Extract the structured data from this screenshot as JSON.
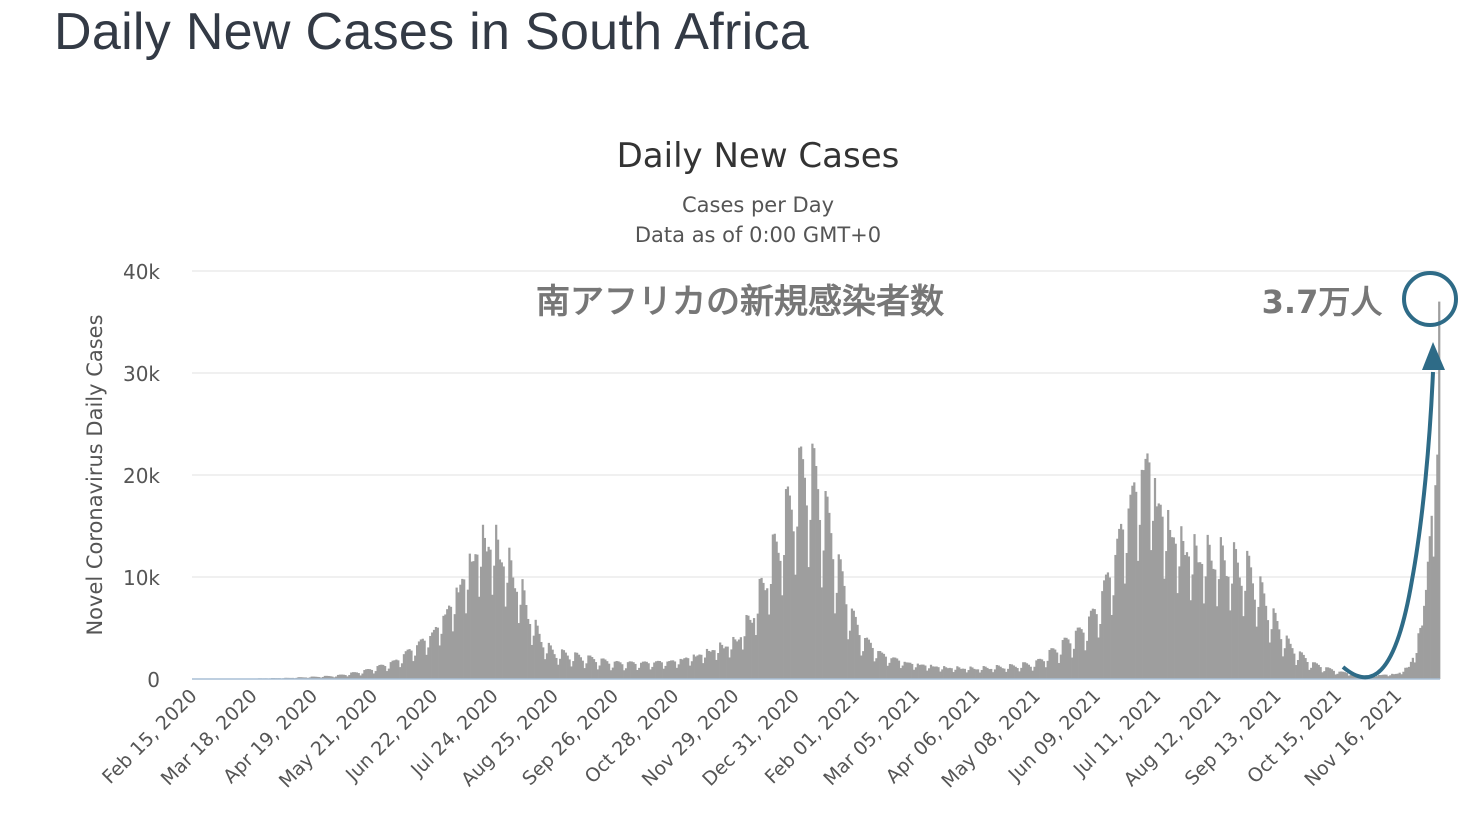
{
  "page": {
    "title": "Daily New Cases in South Africa"
  },
  "chart_data": {
    "type": "bar",
    "title": "Daily New Cases",
    "subtitle": [
      "Cases per Day",
      "Data as of 0:00 GMT+0"
    ],
    "ylabel": "Novel Coronavirus Daily Cases",
    "xlabel": "",
    "ylim": [
      0,
      40000
    ],
    "yticks": [
      0,
      10000,
      20000,
      30000,
      40000
    ],
    "ytick_labels": [
      "0",
      "10k",
      "20k",
      "30k",
      "40k"
    ],
    "x_start": "2020-02-15",
    "x_end": "2021-12-08",
    "xtick_labels": [
      "Feb 15, 2020",
      "Mar 18, 2020",
      "Apr 19, 2020",
      "May 21, 2020",
      "Jun 22, 2020",
      "Jul 24, 2020",
      "Aug 25, 2020",
      "Sep 26, 2020",
      "Oct 28, 2020",
      "Nov 29, 2020",
      "Dec 31, 2020",
      "Feb 01, 2021",
      "Mar 05, 2021",
      "Apr 06, 2021",
      "May 08, 2021",
      "Jun 09, 2021",
      "Jul 11, 2021",
      "Aug 12, 2021",
      "Sep 13, 2021",
      "Oct 15, 2021",
      "Nov 16, 2021"
    ],
    "grid": true,
    "bar_color": "#9e9e9e",
    "series": [
      {
        "name": "Daily New Cases",
        "points": [
          [
            "2020-02-15",
            0
          ],
          [
            "2020-03-15",
            40
          ],
          [
            "2020-04-05",
            100
          ],
          [
            "2020-04-19",
            200
          ],
          [
            "2020-05-01",
            300
          ],
          [
            "2020-05-15",
            700
          ],
          [
            "2020-05-21",
            1000
          ],
          [
            "2020-06-01",
            1600
          ],
          [
            "2020-06-10",
            2800
          ],
          [
            "2020-06-22",
            4400
          ],
          [
            "2020-07-01",
            7000
          ],
          [
            "2020-07-10",
            10500
          ],
          [
            "2020-07-17",
            13000
          ],
          [
            "2020-07-24",
            13000
          ],
          [
            "2020-07-31",
            11000
          ],
          [
            "2020-08-07",
            8500
          ],
          [
            "2020-08-14",
            5000
          ],
          [
            "2020-08-21",
            3000
          ],
          [
            "2020-08-25",
            2500
          ],
          [
            "2020-09-10",
            2000
          ],
          [
            "2020-09-26",
            1500
          ],
          [
            "2020-10-10",
            1500
          ],
          [
            "2020-10-28",
            1700
          ],
          [
            "2020-11-10",
            2300
          ],
          [
            "2020-11-20",
            3000
          ],
          [
            "2020-11-29",
            3500
          ],
          [
            "2020-12-08",
            6000
          ],
          [
            "2020-12-16",
            10000
          ],
          [
            "2020-12-24",
            14000
          ],
          [
            "2020-12-31",
            18000
          ],
          [
            "2021-01-07",
            20000
          ],
          [
            "2021-01-14",
            17000
          ],
          [
            "2021-01-21",
            12000
          ],
          [
            "2021-01-28",
            7000
          ],
          [
            "2021-02-04",
            4000
          ],
          [
            "2021-02-15",
            2300
          ],
          [
            "2021-03-01",
            1500
          ],
          [
            "2021-03-20",
            1100
          ],
          [
            "2021-04-06",
            1000
          ],
          [
            "2021-04-25",
            1200
          ],
          [
            "2021-05-08",
            1500
          ],
          [
            "2021-05-20",
            3000
          ],
          [
            "2021-06-01",
            4500
          ],
          [
            "2021-06-09",
            6500
          ],
          [
            "2021-06-18",
            11000
          ],
          [
            "2021-06-25",
            16000
          ],
          [
            "2021-07-02",
            19000
          ],
          [
            "2021-07-07",
            21000
          ],
          [
            "2021-07-11",
            17000
          ],
          [
            "2021-07-20",
            13500
          ],
          [
            "2021-07-30",
            12000
          ],
          [
            "2021-08-12",
            11500
          ],
          [
            "2021-08-20",
            11000
          ],
          [
            "2021-08-30",
            10000
          ],
          [
            "2021-09-06",
            7500
          ],
          [
            "2021-09-13",
            5000
          ],
          [
            "2021-09-20",
            3000
          ],
          [
            "2021-10-01",
            1500
          ],
          [
            "2021-10-15",
            700
          ],
          [
            "2021-11-01",
            300
          ],
          [
            "2021-11-16",
            500
          ],
          [
            "2021-11-22",
            1200
          ],
          [
            "2021-11-26",
            3000
          ],
          [
            "2021-11-29",
            5500
          ],
          [
            "2021-12-01",
            9000
          ],
          [
            "2021-12-03",
            14000
          ],
          [
            "2021-12-04",
            16000
          ],
          [
            "2021-12-05",
            12000
          ],
          [
            "2021-12-06",
            19000
          ],
          [
            "2021-12-07",
            22000
          ],
          [
            "2021-12-08",
            37000
          ]
        ]
      }
    ],
    "annotations": {
      "overlay_title": "南アフリカの新規感染者数",
      "peak_label": "3.7万人",
      "accent_color": "#2e6b87"
    }
  }
}
